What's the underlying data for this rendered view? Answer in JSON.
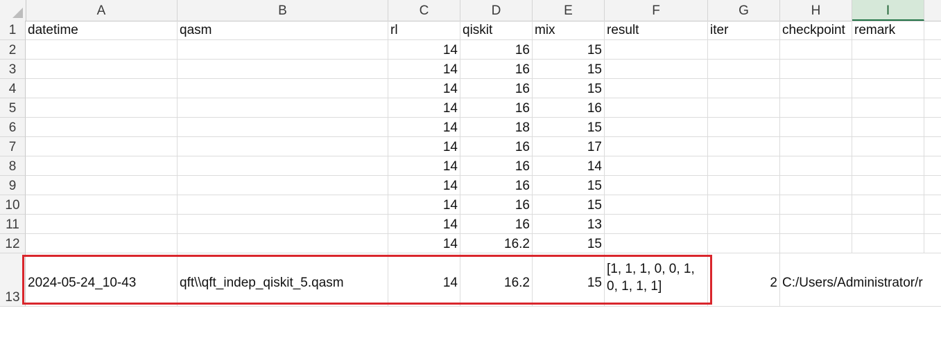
{
  "columns": [
    "A",
    "B",
    "C",
    "D",
    "E",
    "F",
    "G",
    "H",
    "I"
  ],
  "selected_column": "I",
  "header_row": {
    "row_num": "1",
    "cells": [
      "datetime",
      "qasm",
      "rl",
      "qiskit",
      "mix",
      "result",
      "iter",
      "checkpoint",
      "remark"
    ]
  },
  "rows": [
    {
      "row_num": "2",
      "rl": "14",
      "qiskit": "16",
      "mix": "15"
    },
    {
      "row_num": "3",
      "rl": "14",
      "qiskit": "16",
      "mix": "15"
    },
    {
      "row_num": "4",
      "rl": "14",
      "qiskit": "16",
      "mix": "15"
    },
    {
      "row_num": "5",
      "rl": "14",
      "qiskit": "16",
      "mix": "16"
    },
    {
      "row_num": "6",
      "rl": "14",
      "qiskit": "18",
      "mix": "15"
    },
    {
      "row_num": "7",
      "rl": "14",
      "qiskit": "16",
      "mix": "17"
    },
    {
      "row_num": "8",
      "rl": "14",
      "qiskit": "16",
      "mix": "14"
    },
    {
      "row_num": "9",
      "rl": "14",
      "qiskit": "16",
      "mix": "15"
    },
    {
      "row_num": "10",
      "rl": "14",
      "qiskit": "16",
      "mix": "15"
    },
    {
      "row_num": "11",
      "rl": "14",
      "qiskit": "16",
      "mix": "13"
    },
    {
      "row_num": "12",
      "rl": "14",
      "qiskit": "16.2",
      "mix": "15"
    }
  ],
  "last_row": {
    "row_num": "13",
    "datetime": "2024-05-24_10-43",
    "qasm": "qft\\\\qft_indep_qiskit_5.qasm",
    "rl": "14",
    "qiskit": "16.2",
    "mix": "15",
    "result": "[1, 1, 1, 0, 0, 1, 0, 1, 1, 1]",
    "iter": "2",
    "checkpoint": "C:/Users/Administrator/r"
  },
  "colors": {
    "highlight_border": "#d9262c",
    "selected_col_header": "#d6e8d9"
  }
}
